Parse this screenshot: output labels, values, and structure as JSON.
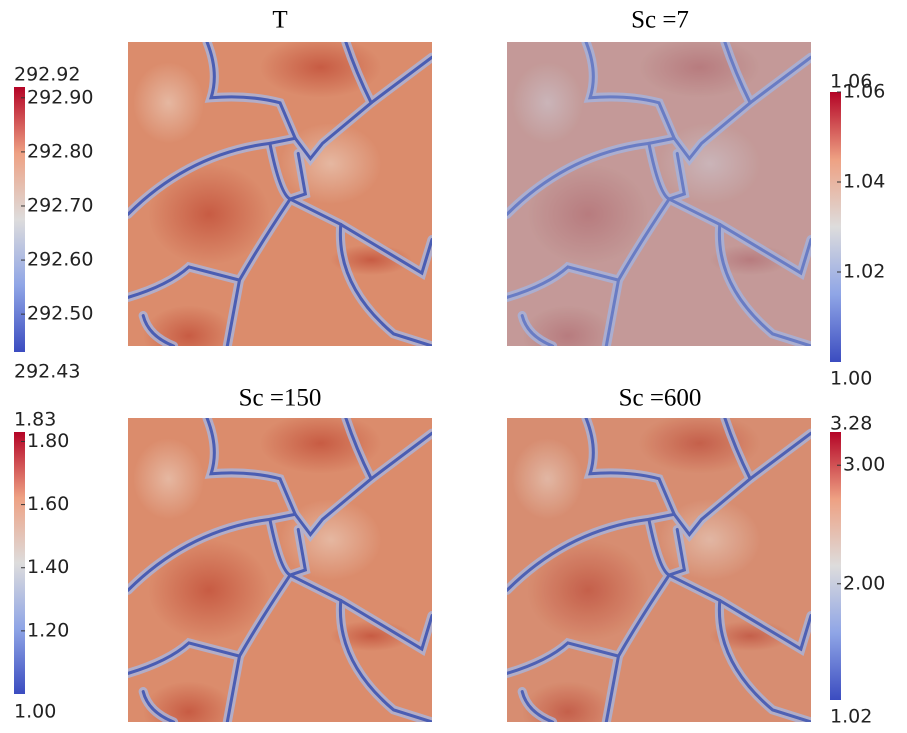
{
  "chart_data": [
    {
      "type": "heatmap",
      "title": "T",
      "clim": [
        292.43,
        292.92
      ],
      "colorbar_ticks": [
        {
          "value": 292.5,
          "label": "292.50"
        },
        {
          "value": 292.6,
          "label": "292.60"
        },
        {
          "value": 292.7,
          "label": "292.70"
        },
        {
          "value": 292.8,
          "label": "292.80"
        },
        {
          "value": 292.9,
          "label": "292.90"
        }
      ]
    },
    {
      "type": "heatmap",
      "title": "Sc =7",
      "clim": [
        {
          "value": 1,
          "label": "1.00"
        },
        1.06
      ],
      "colorbar_ticks": [
        1.02,
        1.04,
        1.06
      ]
    },
    {
      "type": "heatmap",
      "title": "Sc =150",
      "clim": [
        {
          "value": 1,
          "label": "1.00"
        },
        1.83
      ],
      "colorbar_ticks": [
        {
          "value": 1.2,
          "label": "1.20"
        },
        {
          "value": 1.4,
          "label": "1.40"
        },
        {
          "value": 1.6,
          "label": "1.60"
        },
        {
          "value": 1.8,
          "label": "1.80"
        }
      ]
    },
    {
      "type": "heatmap",
      "title": "Sc =600",
      "clim": [
        1.02,
        3.28
      ],
      "colorbar_ticks": [
        {
          "value": 2,
          "label": "2.00"
        },
        {
          "value": 3,
          "label": "3.00"
        }
      ]
    }
  ]
}
